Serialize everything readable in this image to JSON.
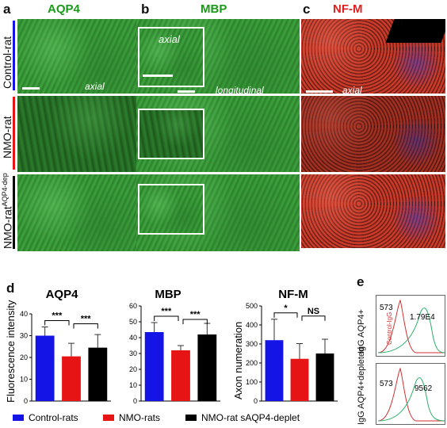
{
  "panels": {
    "a": {
      "letter": "a",
      "title": "AQP4",
      "axial": "axial"
    },
    "b": {
      "letter": "b",
      "title": "MBP",
      "inset": "axial",
      "longitudinal": "longitudinal"
    },
    "c": {
      "letter": "c",
      "title": "NF-M",
      "axial": "axial"
    },
    "d": {
      "letter": "d"
    },
    "e": {
      "letter": "e"
    }
  },
  "row_labels": {
    "control": "Control-rat",
    "nmo": "NMO-rat",
    "depleted_main": "NMO-rat",
    "depleted_sup": "AQP4-dep"
  },
  "colors": {
    "control": "#1414e6",
    "nmo": "#e61414",
    "depleted": "#000000",
    "aqp4_title": "#1a9a1a",
    "mbp_title": "#1a9a1a",
    "nfm_title": "#e02020",
    "flow_red": "#d23030",
    "flow_green": "#2bb06a"
  },
  "legend": [
    {
      "label": "Control-rats",
      "color": "#1414e6"
    },
    {
      "label": "NMO-rats",
      "color": "#e61414"
    },
    {
      "label": "NMO-rat sAQP4-deplet",
      "color": "#000000"
    }
  ],
  "chart_data": [
    {
      "type": "bar",
      "title": "AQP4",
      "ylabel": "Fluorescence intensity",
      "ylim": [
        0,
        40
      ],
      "yticks": [
        "0",
        "10",
        "20",
        "30",
        "40"
      ],
      "categories": [
        "Control-rats",
        "NMO-rats",
        "NMO-rat sAQP4-deplet"
      ],
      "values": [
        30,
        20.5,
        24.5
      ],
      "errors": [
        4,
        6,
        6
      ],
      "significance": [
        "***",
        "***"
      ]
    },
    {
      "type": "bar",
      "title": "MBP",
      "ylabel": "",
      "ylim": [
        0,
        60
      ],
      "yticks": [
        "0",
        "10",
        "20",
        "30",
        "40",
        "50",
        "60"
      ],
      "categories": [
        "Control-rats",
        "NMO-rats",
        "NMO-rat sAQP4-deplet"
      ],
      "values": [
        43.5,
        32,
        42
      ],
      "errors": [
        6,
        3,
        7
      ],
      "significance": [
        "***",
        "***"
      ]
    },
    {
      "type": "bar",
      "title": "NF-M",
      "ylabel": "Axon numeration",
      "ylim": [
        0,
        500
      ],
      "yticks": [
        "0",
        "100",
        "200",
        "300",
        "400",
        "500"
      ],
      "categories": [
        "Control-rats",
        "NMO-rats",
        "NMO-rat sAQP4-deplet"
      ],
      "values": [
        320,
        222,
        250
      ],
      "errors": [
        110,
        80,
        75
      ],
      "significance": [
        "*",
        "NS"
      ]
    }
  ],
  "flow": {
    "top": {
      "ylabel": "IgG AQP4+",
      "ctrl_label": "Control-IgG",
      "mfi_ctrl": "573",
      "mfi_sample": "1.79E4"
    },
    "bottom": {
      "ylabel": "IgG AQP4+depleted",
      "mfi_ctrl": "573",
      "mfi_sample": "9562"
    }
  }
}
